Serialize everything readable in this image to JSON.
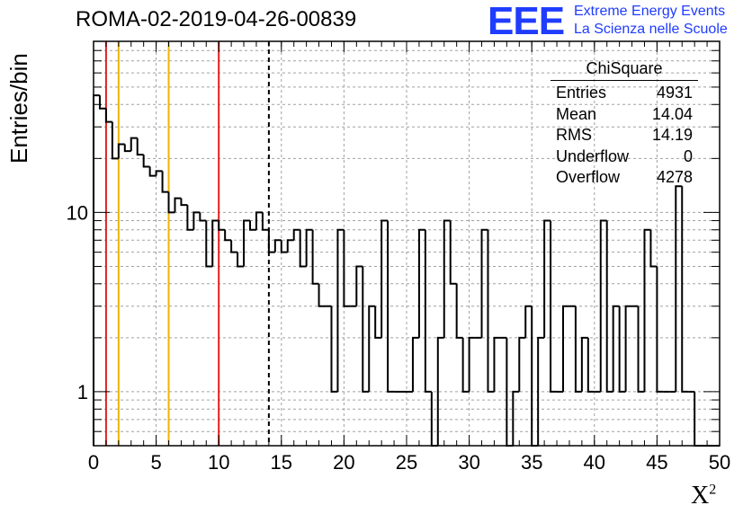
{
  "header": {
    "run_title": "ROMA-02-2019-04-26-00839",
    "logo_text": "EEE",
    "logo_line1": "Extreme Energy Events",
    "logo_line2": "La Scienza nelle Scuole",
    "logo_color": "#1f3cff"
  },
  "stats": {
    "title": "ChiSquare",
    "rows": [
      {
        "label": "Entries",
        "value": "4931"
      },
      {
        "label": "Mean",
        "value": "14.04"
      },
      {
        "label": "RMS",
        "value": "14.19"
      },
      {
        "label": "Underflow",
        "value": "0"
      },
      {
        "label": "Overflow",
        "value": "4278"
      }
    ]
  },
  "chart_data": {
    "type": "histogram",
    "title": "ROMA-02-2019-04-26-00839",
    "xlabel": "X²",
    "ylabel": "Entries/bin",
    "xlim": [
      0,
      50
    ],
    "ylim": [
      0.5,
      90
    ],
    "yscale": "log",
    "grid": true,
    "bin_width": 0.5,
    "x_ticks": [
      0,
      5,
      10,
      15,
      20,
      25,
      30,
      35,
      40,
      45,
      50
    ],
    "y_tick_labels": [
      "1",
      "10"
    ],
    "values": [
      45,
      38,
      32,
      20,
      24,
      22,
      26,
      21,
      18,
      16,
      17,
      13,
      10,
      12,
      11,
      8,
      10,
      9,
      5,
      9,
      8,
      7,
      6,
      5,
      9,
      8,
      10,
      8,
      6,
      7,
      6,
      7,
      8,
      5,
      8,
      4,
      3,
      3,
      1,
      8,
      3,
      3,
      5,
      1,
      3,
      2,
      9,
      1,
      1,
      1,
      1,
      2,
      8,
      1,
      0,
      2,
      9,
      4,
      2,
      1,
      2,
      2,
      8,
      1,
      2,
      2,
      0,
      1,
      2,
      3,
      0,
      2,
      9,
      1,
      1,
      3,
      3,
      1,
      2,
      1,
      1,
      9,
      1,
      3,
      1,
      3,
      3,
      1,
      8,
      5,
      1,
      1,
      1,
      14,
      1,
      1,
      0.5,
      0.5,
      0.5,
      0.5
    ],
    "reference_lines": [
      {
        "x": 1,
        "color": "#e02020",
        "style": "solid"
      },
      {
        "x": 2,
        "color": "#f0b400",
        "style": "solid"
      },
      {
        "x": 6,
        "color": "#f0b400",
        "style": "solid"
      },
      {
        "x": 10,
        "color": "#e02020",
        "style": "solid"
      },
      {
        "x": 14,
        "color": "#000000",
        "style": "dashed"
      }
    ]
  }
}
